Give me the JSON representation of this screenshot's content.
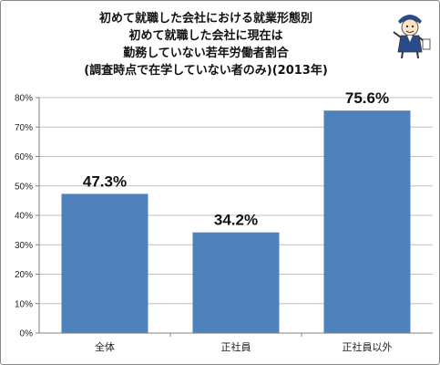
{
  "title_lines": [
    "初めて就職した会社における就業形態別",
    "初めて就職した会社に現在は",
    "勤務していない若年労働者割合",
    "(調査時点で在学していない者のみ)(2013年)"
  ],
  "colors": {
    "bar": "#4f81bd",
    "grid": "#c0c0c0",
    "axis": "#808080"
  },
  "mascot_icon": "cartoon-mascot-icon",
  "chart_data": {
    "type": "bar",
    "categories": [
      "全体",
      "正社員",
      "正社員以外"
    ],
    "values": [
      47.3,
      34.2,
      75.6
    ],
    "data_labels": [
      "47.3%",
      "34.2%",
      "75.6%"
    ],
    "ylim": [
      0,
      80
    ],
    "yticks": [
      0,
      10,
      20,
      30,
      40,
      50,
      60,
      70,
      80
    ],
    "ytick_labels": [
      "0%",
      "10%",
      "20%",
      "30%",
      "40%",
      "50%",
      "60%",
      "70%",
      "80%"
    ],
    "grid": true,
    "legend": "none"
  }
}
